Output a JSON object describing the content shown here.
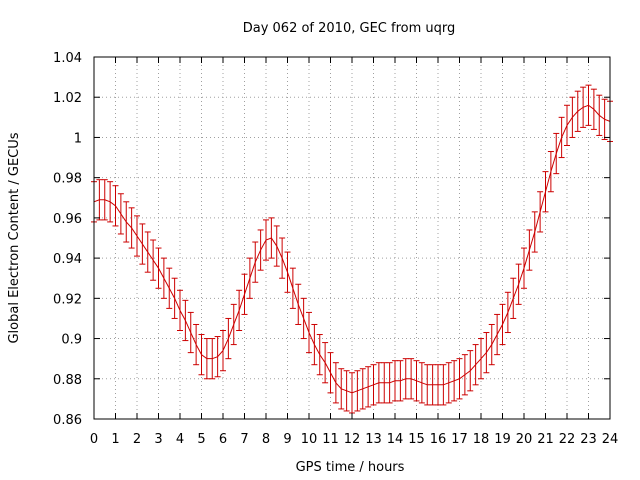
{
  "chart_data": {
    "type": "line",
    "title": "Day 062 of 2010, GEC from uqrg",
    "xlabel": "GPS time / hours",
    "ylabel": "Global Electron Content / GECUs",
    "xlim": [
      0,
      24
    ],
    "ylim": [
      0.86,
      1.04
    ],
    "xticks": [
      0,
      1,
      2,
      3,
      4,
      5,
      6,
      7,
      8,
      9,
      10,
      11,
      12,
      13,
      14,
      15,
      16,
      17,
      18,
      19,
      20,
      21,
      22,
      23,
      24
    ],
    "xtick_labels": [
      "0",
      "1",
      "2",
      "3",
      "4",
      "5",
      "6",
      "7",
      "8",
      "9",
      "10",
      "11",
      "12",
      "13",
      "14",
      "15",
      "16",
      "17",
      "18",
      "19",
      "20",
      "21",
      "22",
      "23",
      "24"
    ],
    "yticks": [
      0.86,
      0.88,
      0.9,
      0.92,
      0.94,
      0.96,
      0.98,
      1.0,
      1.02,
      1.04
    ],
    "ytick_labels": [
      "0.86",
      "0.88",
      "0.9",
      "0.92",
      "0.94",
      "0.96",
      "0.98",
      "1",
      "1.02",
      "1.04"
    ],
    "grid": true,
    "line_color": "#cc0000",
    "error": 0.01,
    "series": [
      {
        "name": "GEC",
        "x": [
          0,
          0.25,
          0.5,
          0.75,
          1,
          1.25,
          1.5,
          1.75,
          2,
          2.25,
          2.5,
          2.75,
          3,
          3.25,
          3.5,
          3.75,
          4,
          4.25,
          4.5,
          4.75,
          5,
          5.25,
          5.5,
          5.75,
          6,
          6.25,
          6.5,
          6.75,
          7,
          7.25,
          7.5,
          7.75,
          8,
          8.25,
          8.5,
          8.75,
          9,
          9.25,
          9.5,
          9.75,
          10,
          10.25,
          10.5,
          10.75,
          11,
          11.25,
          11.5,
          11.75,
          12,
          12.25,
          12.5,
          12.75,
          13,
          13.25,
          13.5,
          13.75,
          14,
          14.25,
          14.5,
          14.75,
          15,
          15.25,
          15.5,
          15.75,
          16,
          16.25,
          16.5,
          16.75,
          17,
          17.25,
          17.5,
          17.75,
          18,
          18.25,
          18.5,
          18.75,
          19,
          19.25,
          19.5,
          19.75,
          20,
          20.25,
          20.5,
          20.75,
          21,
          21.25,
          21.5,
          21.75,
          22,
          22.25,
          22.5,
          22.75,
          23,
          23.25,
          23.5,
          23.75,
          24
        ],
        "values": [
          0.968,
          0.969,
          0.969,
          0.968,
          0.966,
          0.962,
          0.958,
          0.955,
          0.951,
          0.947,
          0.943,
          0.939,
          0.935,
          0.93,
          0.925,
          0.92,
          0.914,
          0.909,
          0.903,
          0.897,
          0.892,
          0.89,
          0.89,
          0.891,
          0.894,
          0.9,
          0.907,
          0.914,
          0.922,
          0.93,
          0.938,
          0.944,
          0.949,
          0.95,
          0.946,
          0.94,
          0.933,
          0.925,
          0.917,
          0.91,
          0.903,
          0.897,
          0.892,
          0.888,
          0.883,
          0.878,
          0.875,
          0.874,
          0.873,
          0.874,
          0.875,
          0.876,
          0.877,
          0.878,
          0.878,
          0.878,
          0.879,
          0.879,
          0.88,
          0.88,
          0.879,
          0.878,
          0.877,
          0.877,
          0.877,
          0.877,
          0.878,
          0.879,
          0.88,
          0.882,
          0.884,
          0.887,
          0.89,
          0.893,
          0.897,
          0.902,
          0.907,
          0.913,
          0.92,
          0.927,
          0.935,
          0.944,
          0.953,
          0.963,
          0.973,
          0.983,
          0.992,
          1.0,
          1.006,
          1.01,
          1.013,
          1.015,
          1.016,
          1.014,
          1.011,
          1.009,
          1.008
        ]
      }
    ]
  }
}
